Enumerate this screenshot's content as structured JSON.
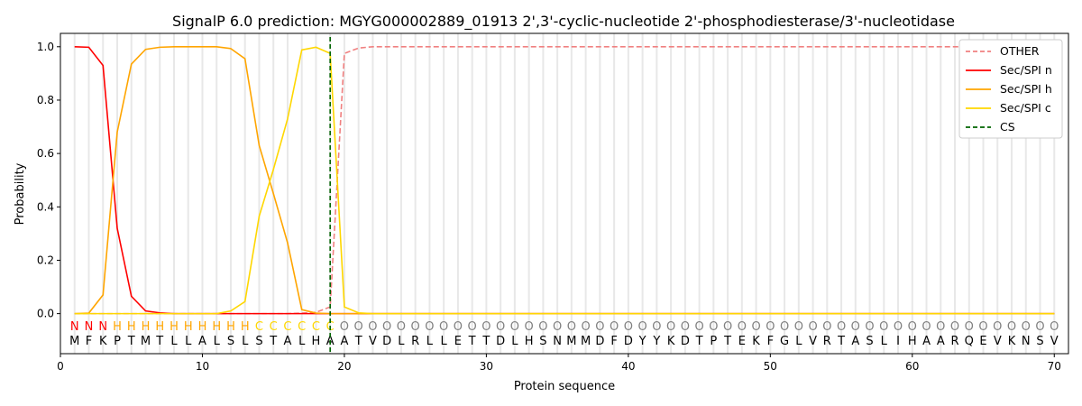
{
  "chart_data": {
    "type": "line",
    "title": "SignalP 6.0 prediction: MGYG000002889_01913 2',3'-cyclic-nucleotide 2'-phosphodiesterase/3'-nucleotidase",
    "xlabel": "Protein sequence",
    "ylabel": "Probability",
    "xlim": [
      0,
      71
    ],
    "ylim": [
      -0.15,
      1.05
    ],
    "xticks": [
      0,
      10,
      20,
      30,
      40,
      50,
      60,
      70
    ],
    "yticks": [
      0.0,
      0.2,
      0.4,
      0.6,
      0.8,
      1.0
    ],
    "grid": "vertical lines at each residue",
    "legend_position": "top-right",
    "sequence": [
      "M",
      "F",
      "K",
      "P",
      "T",
      "M",
      "T",
      "L",
      "L",
      "A",
      "L",
      "S",
      "L",
      "S",
      "T",
      "A",
      "L",
      "H",
      "A",
      "A",
      "T",
      "V",
      "D",
      "L",
      "R",
      "L",
      "L",
      "E",
      "T",
      "T",
      "D",
      "L",
      "H",
      "S",
      "N",
      "M",
      "M",
      "D",
      "F",
      "D",
      "Y",
      "Y",
      "K",
      "D",
      "T",
      "P",
      "T",
      "E",
      "K",
      "F",
      "G",
      "L",
      "V",
      "R",
      "T",
      "A",
      "S",
      "L",
      "I",
      "H",
      "A",
      "A",
      "R",
      "Q",
      "E",
      "V",
      "K",
      "N",
      "S",
      "V"
    ],
    "labels": [
      "N",
      "N",
      "N",
      "H",
      "H",
      "H",
      "H",
      "H",
      "H",
      "H",
      "H",
      "H",
      "H",
      "C",
      "C",
      "C",
      "C",
      "C",
      "C",
      "O",
      "O",
      "O",
      "O",
      "O",
      "O",
      "O",
      "O",
      "O",
      "O",
      "O",
      "O",
      "O",
      "O",
      "O",
      "O",
      "O",
      "O",
      "O",
      "O",
      "O",
      "O",
      "O",
      "O",
      "O",
      "O",
      "O",
      "O",
      "O",
      "O",
      "O",
      "O",
      "O",
      "O",
      "O",
      "O",
      "O",
      "O",
      "O",
      "O",
      "O",
      "O",
      "O",
      "O",
      "O",
      "O",
      "O",
      "O",
      "O",
      "O",
      "O"
    ],
    "label_colors": {
      "N": "#ff0000",
      "H": "#ffa500",
      "C": "#ffd700",
      "O": "#808080"
    },
    "cleavage_site": 19,
    "series": [
      {
        "name": "OTHER",
        "color": "#f08080",
        "dash": true,
        "values": [
          0,
          0,
          0,
          0,
          0,
          0,
          0,
          0,
          0,
          0,
          0,
          0,
          0,
          0,
          0,
          0,
          0.002,
          0.005,
          0.025,
          0.975,
          0.995,
          1,
          1,
          1,
          1,
          1,
          1,
          1,
          1,
          1,
          1,
          1,
          1,
          1,
          1,
          1,
          1,
          1,
          1,
          1,
          1,
          1,
          1,
          1,
          1,
          1,
          1,
          1,
          1,
          1,
          1,
          1,
          1,
          1,
          1,
          1,
          1,
          1,
          1,
          1,
          1,
          1,
          1,
          1,
          1,
          1,
          1,
          1,
          1,
          1
        ]
      },
      {
        "name": "Sec/SPI n",
        "color": "#ff0000",
        "dash": false,
        "values": [
          1.0,
          0.998,
          0.93,
          0.32,
          0.065,
          0.01,
          0.003,
          0,
          0,
          0,
          0,
          0,
          0,
          0,
          0,
          0,
          0,
          0,
          0,
          0,
          0,
          0,
          0,
          0,
          0,
          0,
          0,
          0,
          0,
          0,
          0,
          0,
          0,
          0,
          0,
          0,
          0,
          0,
          0,
          0,
          0,
          0,
          0,
          0,
          0,
          0,
          0,
          0,
          0,
          0,
          0,
          0,
          0,
          0,
          0,
          0,
          0,
          0,
          0,
          0,
          0,
          0,
          0,
          0,
          0,
          0,
          0,
          0,
          0,
          0
        ]
      },
      {
        "name": "Sec/SPI h",
        "color": "#ffa500",
        "dash": false,
        "values": [
          0,
          0.002,
          0.07,
          0.68,
          0.935,
          0.99,
          0.998,
          1,
          1,
          1,
          1,
          0.993,
          0.955,
          0.63,
          0.45,
          0.265,
          0.015,
          0.002,
          0,
          0,
          0,
          0,
          0,
          0,
          0,
          0,
          0,
          0,
          0,
          0,
          0,
          0,
          0,
          0,
          0,
          0,
          0,
          0,
          0,
          0,
          0,
          0,
          0,
          0,
          0,
          0,
          0,
          0,
          0,
          0,
          0,
          0,
          0,
          0,
          0,
          0,
          0,
          0,
          0,
          0,
          0,
          0,
          0,
          0,
          0,
          0,
          0,
          0,
          0,
          0
        ]
      },
      {
        "name": "Sec/SPI c",
        "color": "#ffd700",
        "dash": false,
        "values": [
          0,
          0,
          0,
          0,
          0,
          0,
          0,
          0,
          0,
          0,
          0,
          0.01,
          0.045,
          0.365,
          0.54,
          0.73,
          0.988,
          0.998,
          0.975,
          0.025,
          0.003,
          0,
          0,
          0,
          0,
          0,
          0,
          0,
          0,
          0,
          0,
          0,
          0,
          0,
          0,
          0,
          0,
          0,
          0,
          0,
          0,
          0,
          0,
          0,
          0,
          0,
          0,
          0,
          0,
          0,
          0,
          0,
          0,
          0,
          0,
          0,
          0,
          0,
          0,
          0,
          0,
          0,
          0,
          0,
          0,
          0,
          0,
          0,
          0,
          0
        ]
      }
    ],
    "cs_legend": {
      "name": "CS",
      "color": "#006400"
    }
  }
}
